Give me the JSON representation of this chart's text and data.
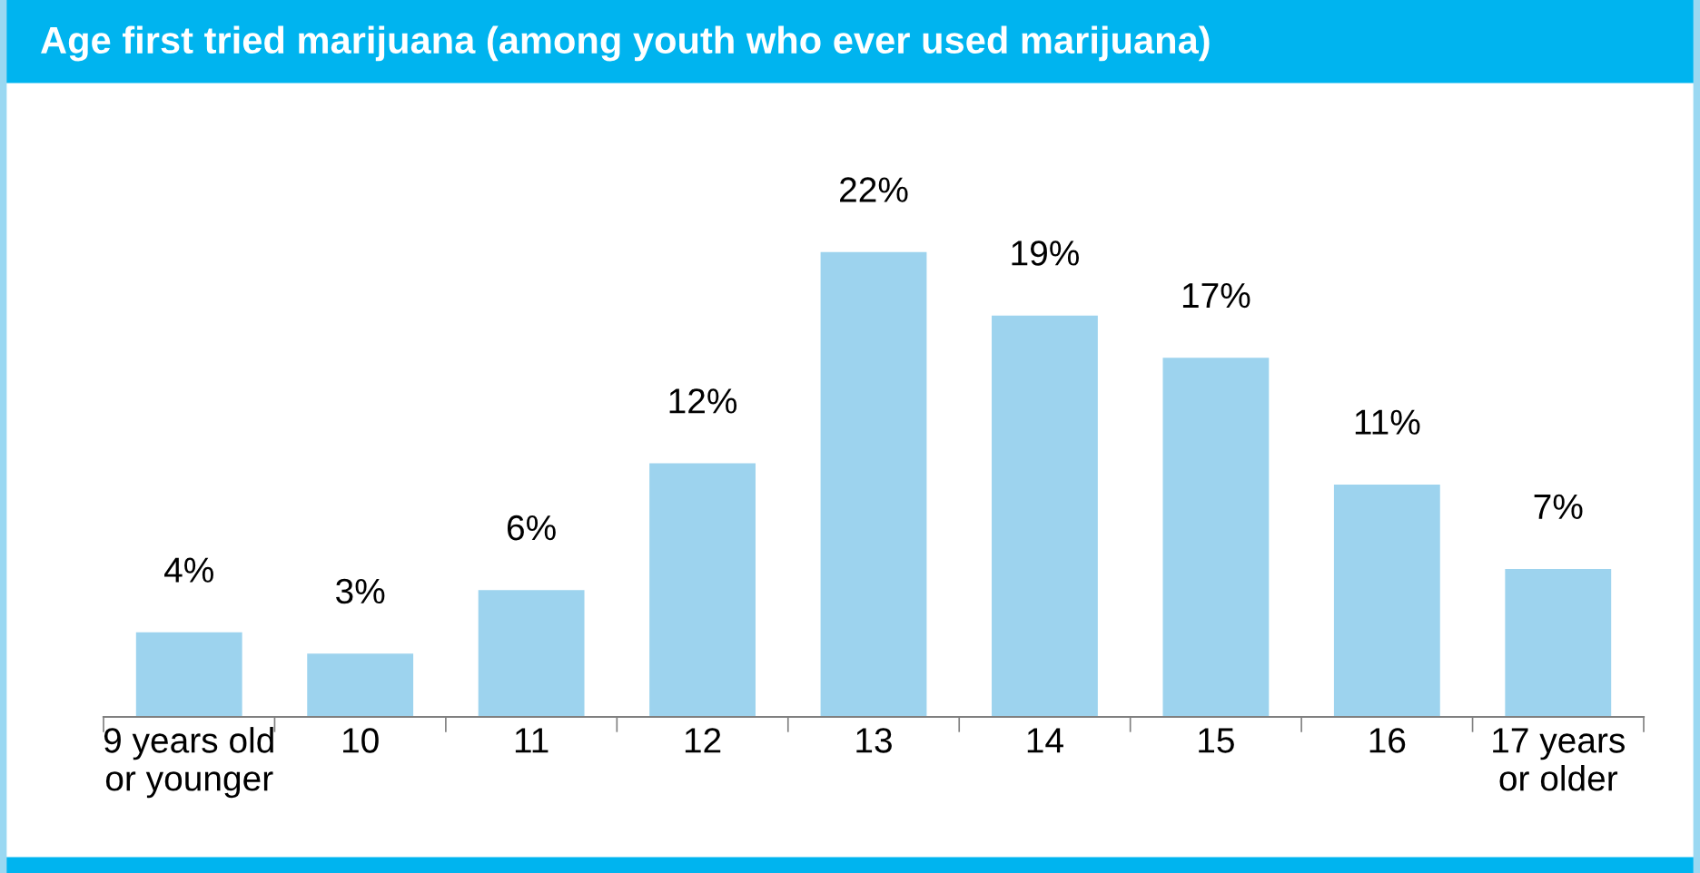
{
  "chart_data": {
    "type": "bar",
    "title": "Age first tried marijuana (among youth who ever used marijuana)",
    "categories": [
      "9 years old\nor younger",
      "10",
      "11",
      "12",
      "13",
      "14",
      "15",
      "16",
      "17 years\nor older"
    ],
    "values": [
      4,
      3,
      6,
      12,
      22,
      19,
      17,
      11,
      7
    ],
    "value_labels": [
      "4%",
      "3%",
      "6%",
      "12%",
      "22%",
      "19%",
      "17%",
      "11%",
      "7%"
    ],
    "color": "#9dd3ee",
    "grid": false,
    "legend": false
  }
}
